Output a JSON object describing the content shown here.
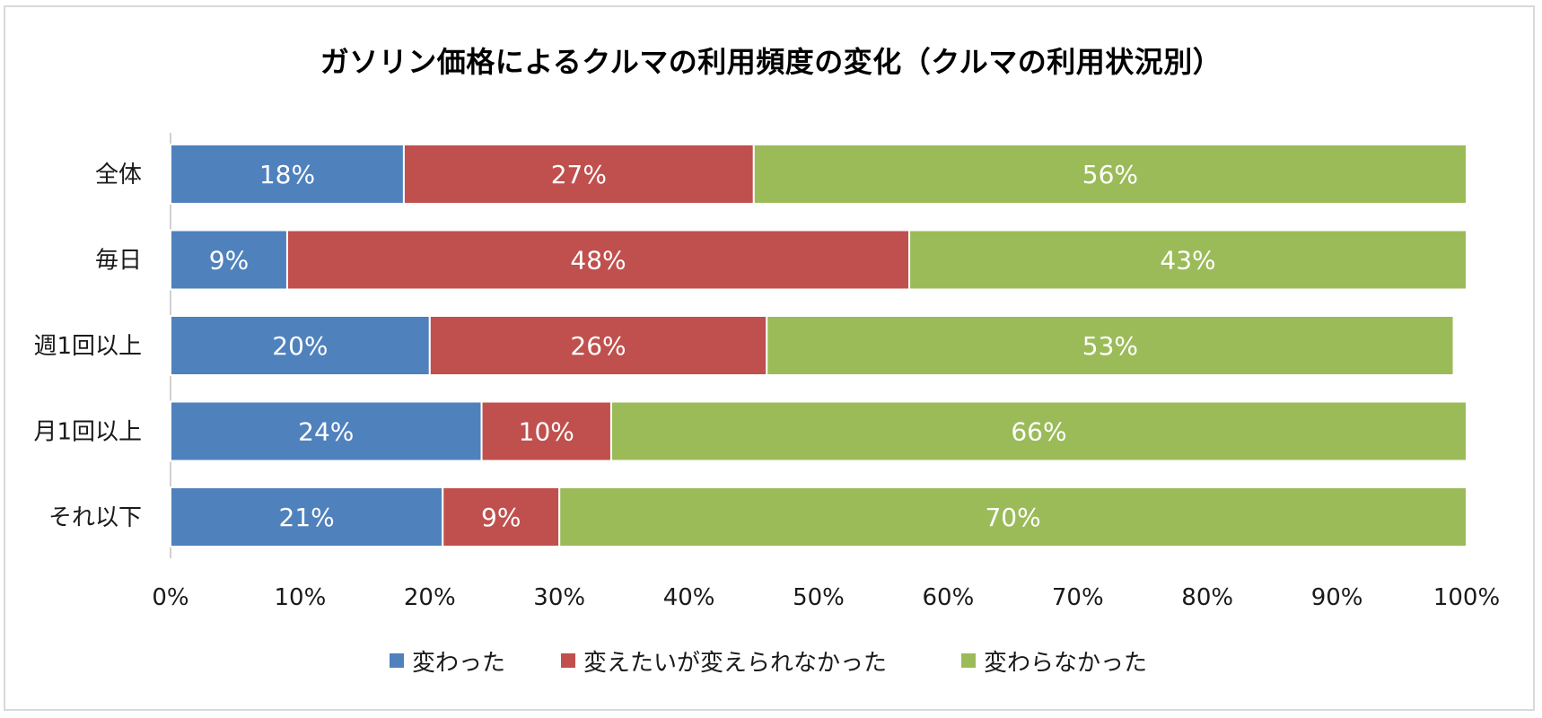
{
  "chart_data": {
    "type": "bar",
    "orientation": "horizontal",
    "stacked": true,
    "title": "ガソリン価格によるクルマの利用頻度の変化（クルマの利用状況別）",
    "categories": [
      "全体",
      "毎日",
      "週1回以上",
      "月1回以上",
      "それ以下"
    ],
    "series": [
      {
        "name": "変わった",
        "color": "#4F81BD",
        "values": [
          18,
          9,
          20,
          24,
          21
        ],
        "labels": [
          "18%",
          "9%",
          "20%",
          "24%",
          "21%"
        ]
      },
      {
        "name": "変えたいが変えられなかった",
        "color": "#C0504D",
        "values": [
          27,
          48,
          26,
          10,
          9
        ],
        "labels": [
          "27%",
          "48%",
          "26%",
          "10%",
          "9%"
        ]
      },
      {
        "name": "変わらなかった",
        "color": "#9BBB59",
        "values": [
          56,
          43,
          53,
          66,
          70
        ],
        "labels": [
          "56%",
          "43%",
          "53%",
          "66%",
          "70%"
        ]
      }
    ],
    "xlim": [
      0,
      100
    ],
    "x_ticks": [
      "0%",
      "10%",
      "20%",
      "30%",
      "40%",
      "50%",
      "60%",
      "70%",
      "80%",
      "90%",
      "100%"
    ],
    "grid": false,
    "legend_position": "bottom"
  }
}
